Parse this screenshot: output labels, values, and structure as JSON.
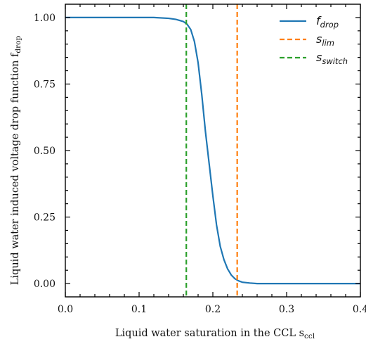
{
  "chart_data": {
    "type": "line",
    "xlabel": "Liquid water saturation in the CCL s",
    "xlabel_sub": "ccl",
    "ylabel": "Liquid water induced voltage drop function f",
    "ylabel_sub": "drop",
    "xlim": [
      0.0,
      0.4
    ],
    "ylim": [
      -0.05,
      1.05
    ],
    "x_ticks": [
      0.0,
      0.1,
      0.2,
      0.3,
      0.4
    ],
    "x_tick_labels": [
      "0.0",
      "0.1",
      "0.2",
      "0.3",
      "0.4"
    ],
    "y_ticks": [
      0.0,
      0.25,
      0.5,
      0.75,
      1.0
    ],
    "y_tick_labels": [
      "0.00",
      "0.25",
      "0.50",
      "0.75",
      "1.00"
    ],
    "grid": false,
    "legend_position": "top-right",
    "series": [
      {
        "kind": "curve",
        "name_main": "f",
        "name_sub": "drop",
        "color": "#1f77b4",
        "x": [
          0.0,
          0.05,
          0.1,
          0.12,
          0.14,
          0.15,
          0.16,
          0.165,
          0.17,
          0.175,
          0.18,
          0.185,
          0.19,
          0.195,
          0.2,
          0.205,
          0.21,
          0.215,
          0.22,
          0.225,
          0.23,
          0.235,
          0.24,
          0.25,
          0.26,
          0.3,
          0.35,
          0.4
        ],
        "y": [
          1.0,
          1.0,
          1.0,
          1.0,
          0.997,
          0.993,
          0.985,
          0.975,
          0.955,
          0.91,
          0.83,
          0.71,
          0.57,
          0.45,
          0.33,
          0.22,
          0.14,
          0.09,
          0.055,
          0.032,
          0.018,
          0.01,
          0.005,
          0.002,
          0.0,
          0.0,
          0.0,
          0.0
        ]
      },
      {
        "kind": "vline",
        "name_main": "s",
        "name_sub": "lim",
        "color": "#ff7f0e",
        "x": 0.233
      },
      {
        "kind": "vline",
        "name_main": "s",
        "name_sub": "switch",
        "color": "#2ca02c",
        "x": 0.164
      }
    ]
  }
}
